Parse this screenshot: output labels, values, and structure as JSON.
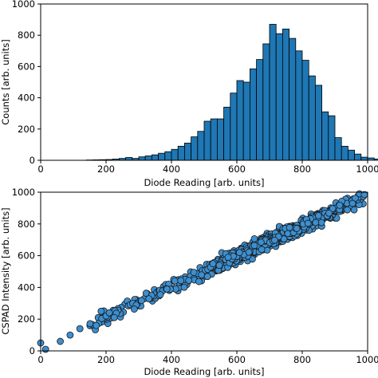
{
  "chart_data": [
    {
      "type": "bar",
      "subtype": "histogram",
      "xlabel": "Diode Reading [arb. units]",
      "ylabel": "Counts [arb. units]",
      "xlim": [
        0,
        1000
      ],
      "ylim": [
        0,
        1000
      ],
      "xticks": [
        0,
        200,
        400,
        600,
        800,
        1000
      ],
      "yticks": [
        0,
        200,
        400,
        600,
        800,
        1000
      ],
      "bar_color": "#1f77b4",
      "edge_color": "#000000",
      "bin_width": 20,
      "bin_start": 140,
      "values": [
        2,
        3,
        4,
        5,
        8,
        12,
        18,
        12,
        22,
        28,
        35,
        45,
        55,
        70,
        90,
        110,
        150,
        185,
        250,
        265,
        265,
        340,
        430,
        510,
        500,
        585,
        645,
        745,
        870,
        810,
        840,
        780,
        700,
        640,
        540,
        480,
        310,
        285,
        145,
        90,
        65,
        40,
        20,
        15,
        8
      ]
    },
    {
      "type": "scatter",
      "xlabel": "Diode Reading [arb. units]",
      "ylabel": "CSPAD Intensity [arb. units]",
      "xlim": [
        0,
        1000
      ],
      "ylim": [
        0,
        1000
      ],
      "xticks": [
        0,
        200,
        400,
        600,
        800,
        1000
      ],
      "yticks": [
        0,
        200,
        400,
        600,
        800,
        1000
      ],
      "marker_color": "#3c8fd0",
      "edge_color": "#1a1a1a",
      "trend": {
        "slope": 0.96,
        "intercept": 20,
        "spread": 20,
        "x_from": 150,
        "x_to": 990,
        "n": 1100
      },
      "points": [
        [
          0,
          50
        ],
        [
          15,
          10
        ],
        [
          60,
          60
        ],
        [
          90,
          100
        ],
        [
          120,
          140
        ],
        [
          170,
          160
        ],
        [
          185,
          250
        ],
        [
          200,
          220
        ],
        [
          210,
          240
        ],
        [
          225,
          210
        ],
        [
          975,
          990
        ],
        [
          990,
          985
        ]
      ]
    }
  ]
}
